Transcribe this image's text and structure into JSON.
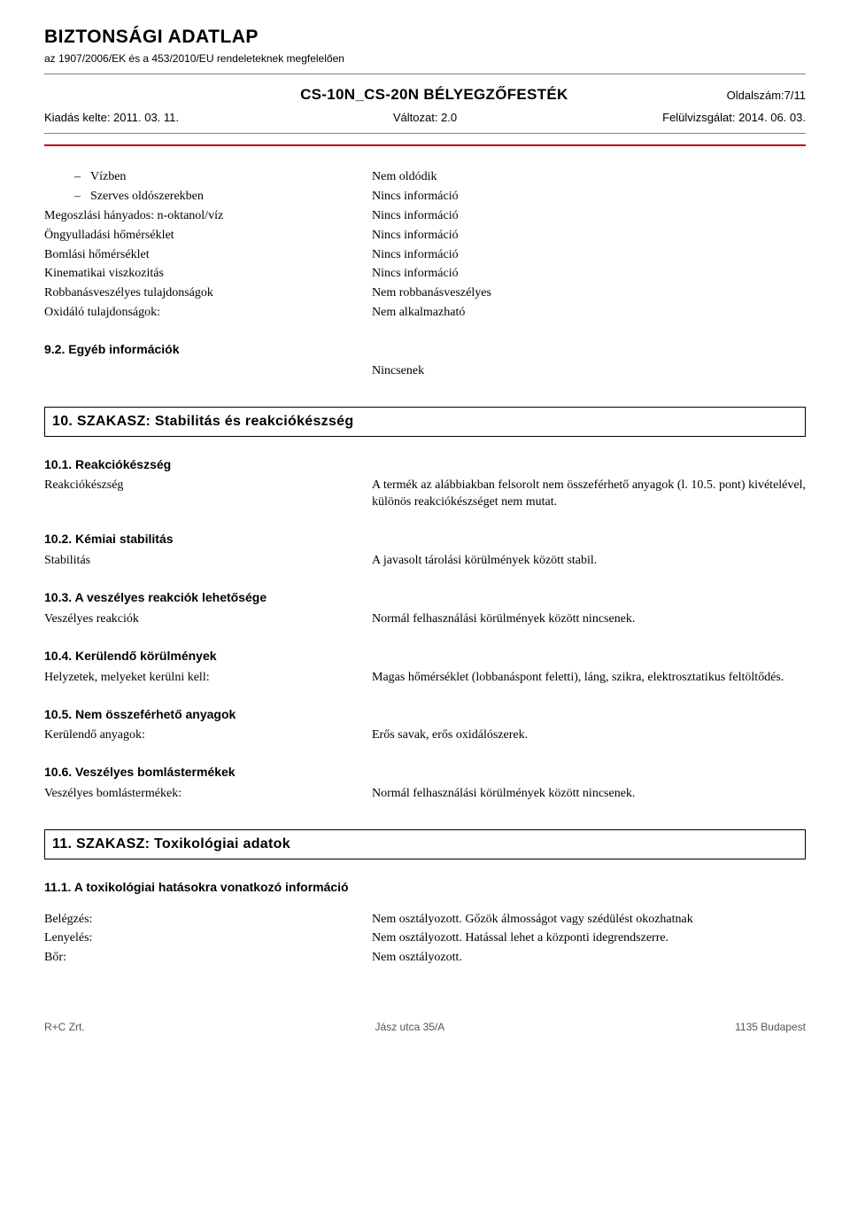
{
  "header": {
    "title": "BIZTONSÁGI ADATLAP",
    "subtitle": "az 1907/2006/EK és a 453/2010/EU rendeleteknek megfelelően",
    "product": "CS-10N_CS-20N BÉLYEGZŐFESTÉK",
    "page": "Oldalszám:7/11",
    "issued_label": "Kiadás kelte: 2011. 03. 11.",
    "version_label": "Változat: 2.0",
    "revised_label": "Felülvizsgálat: 2014. 06. 03."
  },
  "section9_props": [
    {
      "label": "Vízben",
      "value": "Nem oldódik",
      "dash": true,
      "indent": true
    },
    {
      "label": "Szerves oldószerekben",
      "value": "Nincs információ",
      "dash": true,
      "indent": true
    },
    {
      "label": "Megoszlási hányados: n-oktanol/víz",
      "value": "Nincs információ"
    },
    {
      "label": "Öngyulladási hőmérséklet",
      "value": "Nincs információ"
    },
    {
      "label": "Bomlási hőmérséklet",
      "value": "Nincs információ"
    },
    {
      "label": "Kinematikai viszkozitás",
      "value": "Nincs információ"
    },
    {
      "label": "Robbanásveszélyes tulajdonságok",
      "value": "Nem robbanásveszélyes"
    },
    {
      "label": "Oxidáló tulajdonságok:",
      "value": "Nem alkalmazható"
    }
  ],
  "sec9_2": {
    "heading": "9.2. Egyéb információk",
    "value": "Nincsenek"
  },
  "sec10": {
    "title": "10. SZAKASZ: Stabilitás és reakciókészség",
    "s1": {
      "heading": "10.1. Reakciókészség",
      "label": "Reakciókészség",
      "value": "A termék az alábbiakban felsorolt nem összeférhető anyagok (l. 10.5. pont) kivételével, különös reakciókészséget nem mutat."
    },
    "s2": {
      "heading": "10.2. Kémiai stabilitás",
      "label": "Stabilitás",
      "value": "A javasolt tárolási körülmények között stabil."
    },
    "s3": {
      "heading": "10.3. A veszélyes reakciók lehetősége",
      "label": "Veszélyes reakciók",
      "value": "Normál felhasználási körülmények között nincsenek."
    },
    "s4": {
      "heading": "10.4. Kerülendő körülmények",
      "label": "Helyzetek, melyeket kerülni kell:",
      "value": "Magas hőmérséklet (lobbanáspont feletti), láng, szikra, elektrosztatikus feltöltődés."
    },
    "s5": {
      "heading": "10.5. Nem összeférhető anyagok",
      "label": "Kerülendő anyagok:",
      "value": "Erős savak, erős oxidálószerek."
    },
    "s6": {
      "heading": "10.6. Veszélyes bomlástermékek",
      "label": "Veszélyes bomlástermékek:",
      "value": "Normál felhasználási körülmények között nincsenek."
    }
  },
  "sec11": {
    "title": "11. SZAKASZ: Toxikológiai adatok",
    "s1_heading": "11.1. A toxikológiai hatásokra vonatkozó információ",
    "rows": [
      {
        "label": "Belégzés:",
        "value": "Nem osztályozott. Gőzök álmosságot vagy szédülést okozhatnak"
      },
      {
        "label": "Lenyelés:",
        "value": "Nem osztályozott. Hatással lehet a központi idegrendszerre."
      },
      {
        "label": "Bőr:",
        "value": "Nem osztályozott."
      }
    ]
  },
  "footer": {
    "left": "R+C Zrt.",
    "center": "Jász utca 35/A",
    "right": "1135 Budapest"
  },
  "colors": {
    "hr_red": "#c00000",
    "hr_gray": "#808080",
    "text": "#000000",
    "background": "#ffffff"
  }
}
